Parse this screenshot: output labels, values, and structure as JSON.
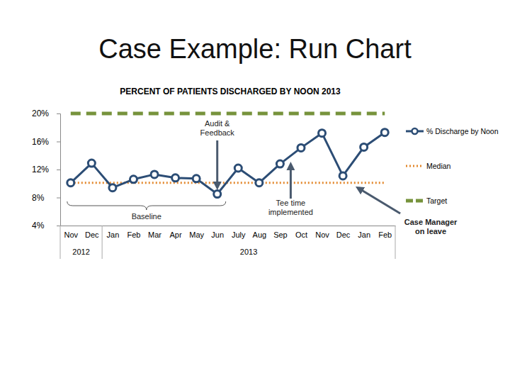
{
  "heading": "Case Example: Run Chart",
  "chart_data": {
    "type": "line",
    "title": "PERCENT OF PATIENTS DISCHARGED BY NOON 2013",
    "categories": [
      "Nov",
      "Dec",
      "Jan",
      "Feb",
      "Mar",
      "Apr",
      "May",
      "Jun",
      "July",
      "Aug",
      "Sep",
      "Oct",
      "Nov",
      "Dec",
      "Jan",
      "Feb"
    ],
    "category_groups": [
      {
        "label": "2012",
        "from": 0,
        "to": 1
      },
      {
        "label": "2013",
        "from": 2,
        "to": 15
      }
    ],
    "series": [
      {
        "name": "% Discharge by Noon",
        "color": "#2c4d75",
        "marker": "circle",
        "line_style": "solid",
        "values": [
          10.1,
          12.9,
          9.4,
          10.6,
          11.3,
          10.8,
          10.7,
          8.5,
          12.2,
          10.1,
          12.8,
          15.1,
          17.2,
          11.1,
          15.2,
          17.3
        ]
      },
      {
        "name": "Median",
        "color": "#e3892f",
        "line_style": "dotted",
        "values": [
          10.1,
          10.1,
          10.1,
          10.1,
          10.1,
          10.1,
          10.1,
          10.1,
          10.1,
          10.1,
          10.1,
          10.1,
          10.1,
          10.1,
          10.1,
          10.1
        ]
      },
      {
        "name": "Target",
        "color": "#77933c",
        "line_style": "dashed",
        "values": [
          20,
          20,
          20,
          20,
          20,
          20,
          20,
          20,
          20,
          20,
          20,
          20,
          20,
          20,
          20,
          20
        ]
      }
    ],
    "ylim": [
      4,
      20
    ],
    "yticks": [
      {
        "value": 4,
        "label": "4%"
      },
      {
        "value": 8,
        "label": "8%"
      },
      {
        "value": 12,
        "label": "12%"
      },
      {
        "value": 16,
        "label": "16%"
      },
      {
        "value": 20,
        "label": "20%"
      }
    ],
    "grid": false,
    "legend": "right",
    "annotations": [
      {
        "lines": [
          "Audit &",
          "Feedback"
        ],
        "category": 7
      },
      {
        "lines": [
          "Baseline"
        ],
        "from": 0,
        "to": 7
      },
      {
        "lines": [
          "Tee time",
          "implemented"
        ],
        "category": 10
      },
      {
        "lines": [
          "Case Manager",
          "on leave"
        ],
        "category": 13
      }
    ]
  }
}
